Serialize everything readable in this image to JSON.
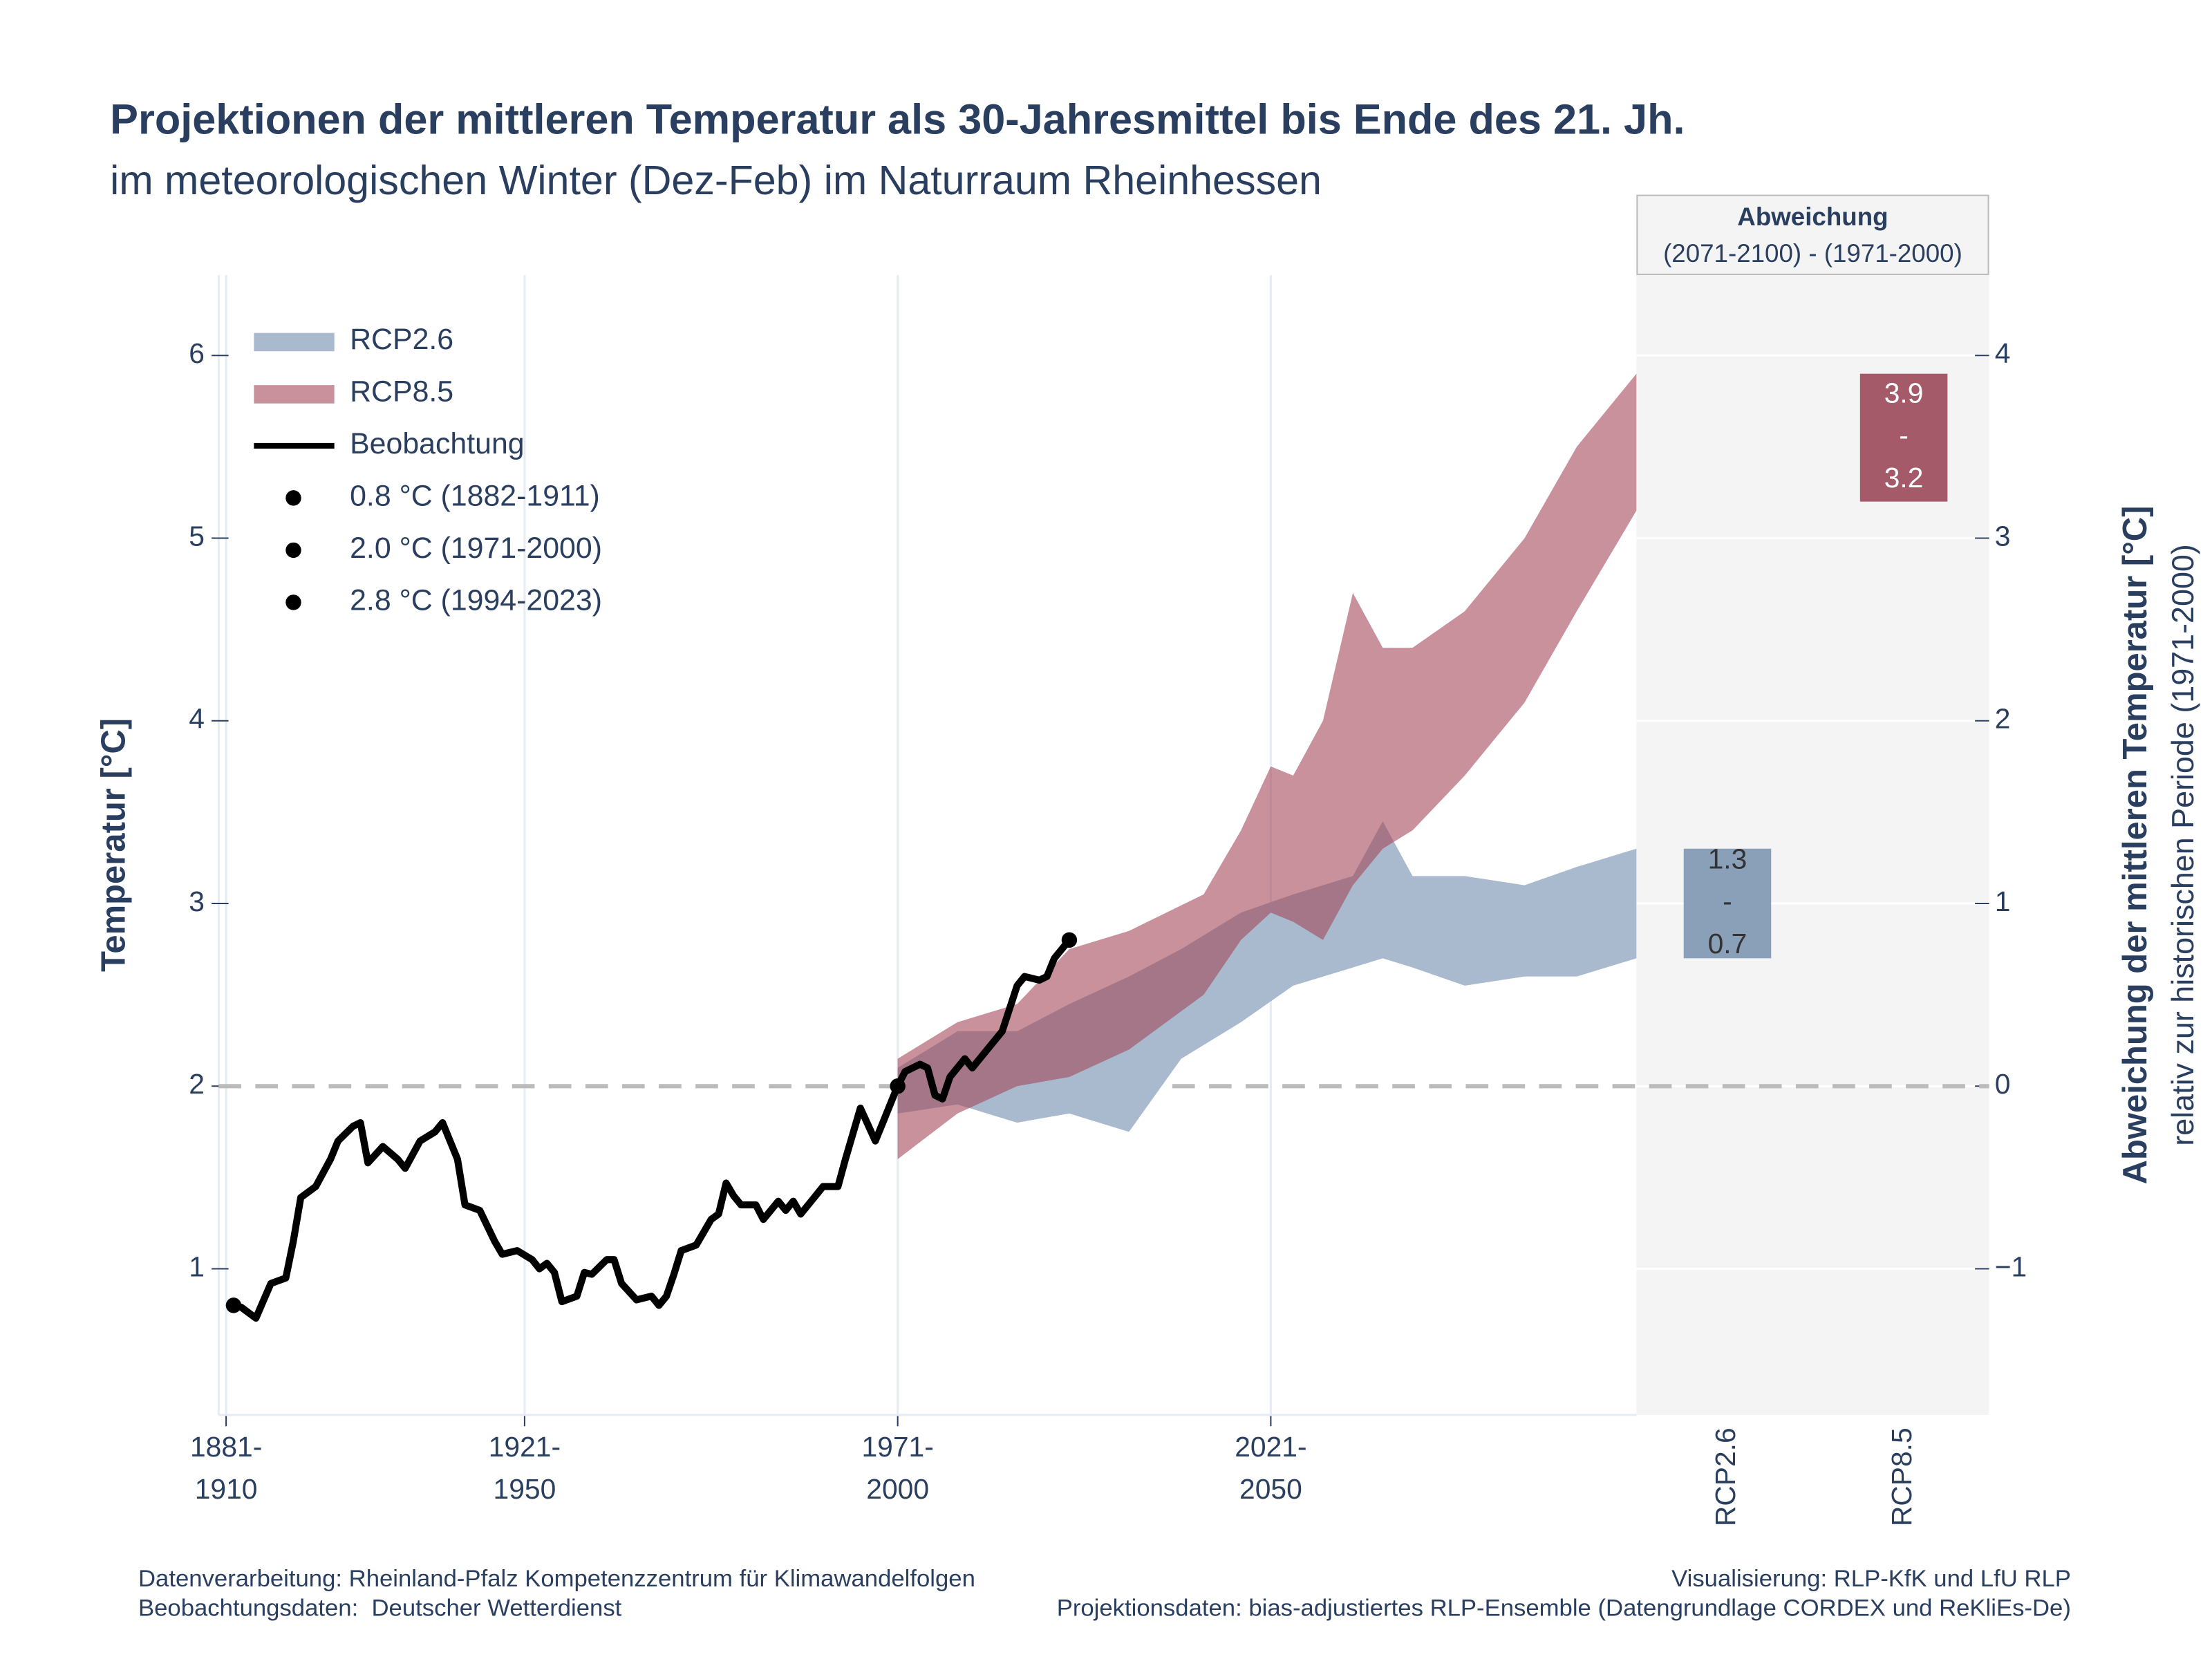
{
  "chart_data": [
    {
      "type": "line",
      "title": "Projektionen der mittleren Temperatur als 30-Jahresmittel bis Ende des 21. Jh.",
      "subtitle": "im meteorologischen Winter (Dez-Feb) im Naturraum Rheinhessen",
      "y_label": "Temperatur [°C]",
      "xlim": [
        1880,
        2070
      ],
      "xticks": [
        {
          "value": 1881,
          "label": "1881-1910"
        },
        {
          "value": 1921,
          "label": "1921-1950"
        },
        {
          "value": 1971,
          "label": "1971-2000"
        },
        {
          "value": 2021,
          "label": "2021-2050"
        }
      ],
      "ylim": [
        0.2,
        6.44
      ],
      "yticks": [
        1,
        2,
        3,
        4,
        5,
        6
      ],
      "grid": true,
      "legend": "upper left",
      "reference_line": 2.0,
      "series": [
        {
          "name": "RCP2.6",
          "type": "band",
          "color": "#a9bace",
          "x": [
            1971,
            1979,
            1987,
            1994,
            2002,
            2009,
            2017,
            2024,
            2032,
            2036,
            2040,
            2047,
            2055,
            2062,
            2070
          ],
          "lower": [
            1.85,
            1.9,
            1.8,
            1.85,
            1.75,
            2.15,
            2.35,
            2.55,
            2.65,
            2.7,
            2.65,
            2.55,
            2.6,
            2.6,
            2.7
          ],
          "upper": [
            2.1,
            2.3,
            2.3,
            2.45,
            2.6,
            2.75,
            2.95,
            3.05,
            3.15,
            3.45,
            3.15,
            3.15,
            3.1,
            3.2,
            3.3
          ]
        },
        {
          "name": "RCP8.5",
          "type": "band",
          "color": "#a3475a",
          "x": [
            1971,
            1979,
            1987,
            1994,
            2002,
            2012,
            2017,
            2021,
            2024,
            2028,
            2032,
            2036,
            2040,
            2047,
            2055,
            2062,
            2070
          ],
          "lower": [
            1.6,
            1.85,
            2.0,
            2.05,
            2.2,
            2.5,
            2.8,
            2.95,
            2.9,
            2.8,
            3.1,
            3.3,
            3.4,
            3.7,
            4.1,
            4.6,
            5.15
          ],
          "upper": [
            2.15,
            2.35,
            2.45,
            2.75,
            2.85,
            3.05,
            3.4,
            3.75,
            3.7,
            4.0,
            4.7,
            4.4,
            4.4,
            4.6,
            5.0,
            5.5,
            5.9
          ]
        },
        {
          "name": "Beobachtung",
          "type": "line",
          "color": "#000000",
          "x": [
            1882,
            1883,
            1885,
            1887,
            1889,
            1890,
            1891,
            1893,
            1895,
            1896,
            1898,
            1899,
            1900,
            1902,
            1904,
            1905,
            1907,
            1909,
            1910,
            1912,
            1913,
            1915,
            1917,
            1918,
            1920,
            1922,
            1923,
            1924,
            1925,
            1926,
            1928,
            1929,
            1930,
            1932,
            1933,
            1934,
            1936,
            1938,
            1939,
            1940,
            1941,
            1942,
            1944,
            1946,
            1947,
            1948,
            1949,
            1950,
            1952,
            1953,
            1955,
            1956,
            1957,
            1958,
            1960,
            1961,
            1963,
            1964,
            1966,
            1968,
            1969,
            1971,
            1972,
            1974,
            1975,
            1976,
            1977,
            1978,
            1980,
            1981,
            1983,
            1985,
            1987,
            1988,
            1990,
            1991,
            1992,
            1994
          ],
          "values": [
            0.8,
            0.79,
            0.73,
            0.92,
            0.95,
            1.15,
            1.39,
            1.45,
            1.6,
            1.7,
            1.78,
            1.8,
            1.58,
            1.67,
            1.6,
            1.55,
            1.7,
            1.75,
            1.8,
            1.6,
            1.35,
            1.32,
            1.15,
            1.08,
            1.1,
            1.05,
            1.0,
            1.03,
            0.98,
            0.82,
            0.85,
            0.98,
            0.97,
            1.05,
            1.05,
            0.92,
            0.83,
            0.85,
            0.8,
            0.85,
            0.97,
            1.1,
            1.13,
            1.27,
            1.3,
            1.47,
            1.4,
            1.35,
            1.35,
            1.27,
            1.37,
            1.32,
            1.37,
            1.3,
            1.4,
            1.45,
            1.45,
            1.6,
            1.88,
            1.7,
            1.8,
            2.0,
            2.08,
            2.12,
            2.1,
            1.95,
            1.93,
            2.05,
            2.15,
            2.1,
            2.2,
            2.3,
            2.55,
            2.6,
            2.58,
            2.6,
            2.7,
            2.8
          ]
        }
      ],
      "markers": [
        {
          "x": 1882,
          "value": 0.8,
          "label": "0.8 °C (1882-1911)"
        },
        {
          "x": 1971,
          "value": 2.0,
          "label": "2.0 °C (1971-2000)"
        },
        {
          "x": 1994,
          "value": 2.8,
          "label": "2.8 °C (1994-2023)"
        }
      ]
    },
    {
      "type": "bar",
      "title": "Abweichung",
      "subtitle": "(2071-2100) - (1971-2000)",
      "y_label": "Abweichung der mittleren Temperatur [°C]",
      "y_sublabel": "relativ zur historischen Periode (1971-2000)",
      "categories": [
        "RCP2.6",
        "RCP8.5"
      ],
      "lower": [
        0.7,
        3.2
      ],
      "upper": [
        1.3,
        3.9
      ],
      "colors": [
        "#8aa0b8",
        "#a55a6a"
      ],
      "label_colors": [
        "#333333",
        "#ffffff"
      ],
      "separator": "-",
      "axis": "y2",
      "y2lim": [
        -1.8,
        4.44
      ],
      "y2ticks": [
        {
          "value": -1,
          "label": "−1"
        },
        0,
        1,
        2,
        3,
        4
      ]
    }
  ],
  "footer": [
    "Datenverarbeitung: Rheinland-Pfalz Kompetenzzentrum für Klimawandelfolgen",
    "Beobachtungsdaten:  Deutscher Wetterdienst",
    "Visualisierung: RLP-KfK und LfU RLP",
    "Projektionsdaten: bias-adjustiertes RLP-Ensemble (Datengrundlage CORDEX und ReKliEs-De)"
  ]
}
